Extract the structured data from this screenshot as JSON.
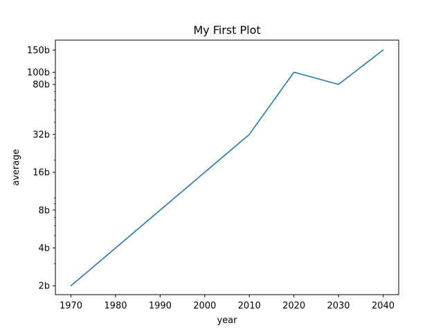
{
  "chart_data": {
    "type": "line",
    "title": "My First Plot",
    "xlabel": "year",
    "ylabel": "average",
    "x": [
      1970,
      1980,
      1990,
      2000,
      2010,
      2020,
      2030,
      2040
    ],
    "series": [
      {
        "values": [
          2,
          4,
          8,
          16,
          32,
          100,
          80,
          150
        ],
        "color": "#1f77b4"
      }
    ],
    "xlim": [
      1966.5,
      2043.5
    ],
    "ylim": [
      1.7,
      180
    ],
    "yscale": "log",
    "x_ticks": [
      {
        "value": 1970,
        "label": "1970"
      },
      {
        "value": 1980,
        "label": "1980"
      },
      {
        "value": 1990,
        "label": "1990"
      },
      {
        "value": 2000,
        "label": "2000"
      },
      {
        "value": 2010,
        "label": "2010"
      },
      {
        "value": 2020,
        "label": "2020"
      },
      {
        "value": 2030,
        "label": "2030"
      },
      {
        "value": 2040,
        "label": "2040"
      }
    ],
    "y_ticks": [
      {
        "value": 2,
        "label": "2b"
      },
      {
        "value": 4,
        "label": "4b"
      },
      {
        "value": 8,
        "label": "8b"
      },
      {
        "value": 16,
        "label": "16b"
      },
      {
        "value": 32,
        "label": "32b"
      },
      {
        "value": 80,
        "label": "80b"
      },
      {
        "value": 100,
        "label": "100b"
      },
      {
        "value": 150,
        "label": "150b"
      }
    ],
    "y_minor_ticks": [
      3,
      5,
      6,
      7,
      9,
      10,
      20,
      30,
      40,
      50,
      60,
      70,
      90
    ],
    "grid": false,
    "legend": "none"
  }
}
